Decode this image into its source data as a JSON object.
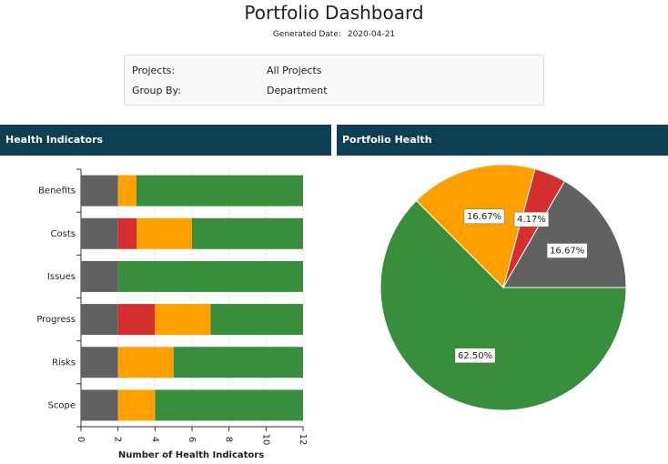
{
  "header": {
    "title": "Portfolio Dashboard",
    "generated_label": "Generated Date:",
    "generated_date": "2020-04-21"
  },
  "filters": [
    {
      "label": "Projects:",
      "value": "All Projects"
    },
    {
      "label": "Group By:",
      "value": "Department"
    }
  ],
  "chart_data": [
    {
      "type": "bar",
      "orientation": "horizontal",
      "stacked": true,
      "title": "Health Indicators",
      "categories": [
        "Benefits",
        "Costs",
        "Issues",
        "Progress",
        "Risks",
        "Scope"
      ],
      "series": [
        {
          "color": "#616161",
          "values": [
            2,
            2,
            2,
            2,
            2,
            2
          ]
        },
        {
          "color": "#d32f2f",
          "values": [
            0,
            1,
            0,
            2,
            0,
            0
          ]
        },
        {
          "color": "#ffa000",
          "values": [
            1,
            3,
            0,
            3,
            3,
            2
          ]
        },
        {
          "color": "#388e3c",
          "values": [
            9,
            6,
            10,
            5,
            7,
            8
          ]
        }
      ],
      "xlim": [
        0,
        12
      ],
      "xticks": [
        0,
        2,
        4,
        6,
        8,
        10,
        12
      ],
      "xlabel": "Number of Health Indicators",
      "grid": true
    },
    {
      "type": "pie",
      "title": "Portfolio Health",
      "values": [
        62.5,
        16.67,
        4.17,
        16.67
      ],
      "value_labels": [
        "62.50%",
        "16.67%",
        "4.17%",
        "16.67%"
      ],
      "colors": [
        "#388e3c",
        "#ffa000",
        "#d32f2f",
        "#616161"
      ]
    }
  ]
}
